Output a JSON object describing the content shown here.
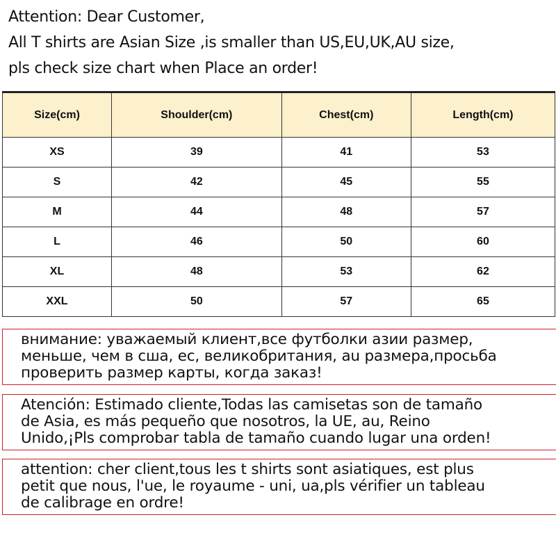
{
  "intro": {
    "lines": [
      "Attention: Dear Customer,",
      "All T shirts are  Asian Size ,is smaller than US,EU,UK,AU size,",
      "pls check size chart when Place an order!"
    ]
  },
  "size_table": {
    "header_bg": "#fdf0cd",
    "headers": [
      "Size(cm)",
      "Shoulder(cm)",
      "Chest(cm)",
      "Length(cm)"
    ],
    "rows": [
      [
        "XS",
        "39",
        "41",
        "53"
      ],
      [
        "S",
        "42",
        "45",
        "55"
      ],
      [
        "M",
        "44",
        "48",
        "57"
      ],
      [
        "L",
        "46",
        "50",
        "60"
      ],
      [
        "XL",
        "48",
        "53",
        "62"
      ],
      [
        "XXL",
        "50",
        "57",
        "65"
      ]
    ]
  },
  "notices": {
    "border_color": "#c8202a",
    "russian": [
      "внимание: уважаемый клиент,все футболки азии размер,",
      "меньше, чем в сша, ес, великобритания, au размера,просьба",
      "проверить размер карты, когда заказ!"
    ],
    "spanish": [
      "Atención: Estimado cliente,Todas las camisetas son de tamaño",
      "de Asia, es más pequeño que nosotros, la UE, au, Reino",
      "Unido,¡Pls comprobar tabla de tamaño cuando lugar una orden!"
    ],
    "french": [
      "attention: cher client,tous les t shirts sont asiatiques, est plus",
      "petit que nous, l'ue, le royaume - uni, ua,pls vérifier un tableau",
      "de calibrage en ordre!"
    ]
  }
}
